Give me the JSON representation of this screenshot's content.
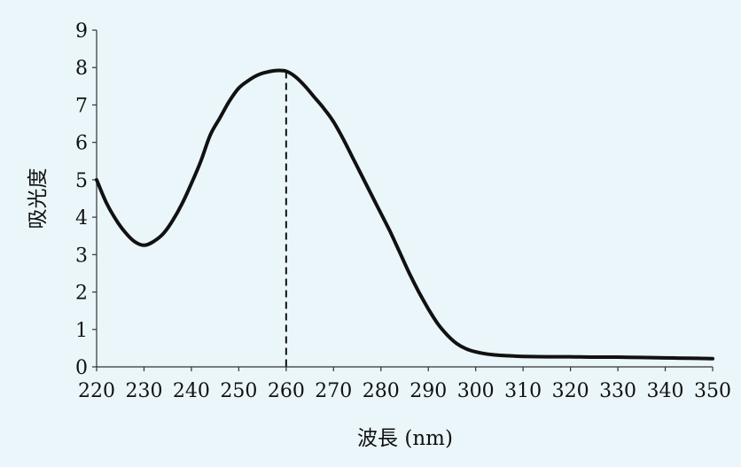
{
  "chart_data": {
    "type": "line",
    "title": "",
    "xlabel": "波長 (nm)",
    "ylabel": "吸光度",
    "xlim": [
      220,
      350
    ],
    "ylim": [
      0,
      9
    ],
    "xticks": [
      220,
      230,
      240,
      250,
      260,
      270,
      280,
      290,
      300,
      310,
      320,
      330,
      340,
      350
    ],
    "yticks": [
      0,
      1,
      2,
      3,
      4,
      5,
      6,
      7,
      8,
      9
    ],
    "grid": false,
    "legend": "none",
    "marker_line": {
      "x": 260,
      "y": 7.9,
      "style": "dashed"
    },
    "series": [
      {
        "line_color": "#111111",
        "x": [
          220,
          222,
          224,
          226,
          228,
          230,
          232,
          234,
          236,
          238,
          240,
          242,
          244,
          246,
          248,
          250,
          252,
          254,
          256,
          258,
          260,
          262,
          264,
          266,
          268,
          270,
          272,
          274,
          276,
          278,
          280,
          282,
          284,
          286,
          288,
          290,
          292,
          294,
          296,
          298,
          300,
          302,
          304,
          306,
          308,
          310,
          315,
          320,
          325,
          330,
          335,
          340,
          345,
          350
        ],
        "y": [
          5.0,
          4.4,
          3.95,
          3.6,
          3.35,
          3.25,
          3.35,
          3.55,
          3.9,
          4.35,
          4.9,
          5.5,
          6.2,
          6.65,
          7.1,
          7.45,
          7.65,
          7.8,
          7.88,
          7.92,
          7.9,
          7.75,
          7.5,
          7.2,
          6.9,
          6.55,
          6.1,
          5.6,
          5.1,
          4.6,
          4.1,
          3.6,
          3.05,
          2.5,
          2.0,
          1.55,
          1.15,
          0.85,
          0.62,
          0.48,
          0.4,
          0.35,
          0.32,
          0.3,
          0.29,
          0.28,
          0.27,
          0.27,
          0.26,
          0.26,
          0.25,
          0.24,
          0.23,
          0.22
        ]
      }
    ]
  }
}
